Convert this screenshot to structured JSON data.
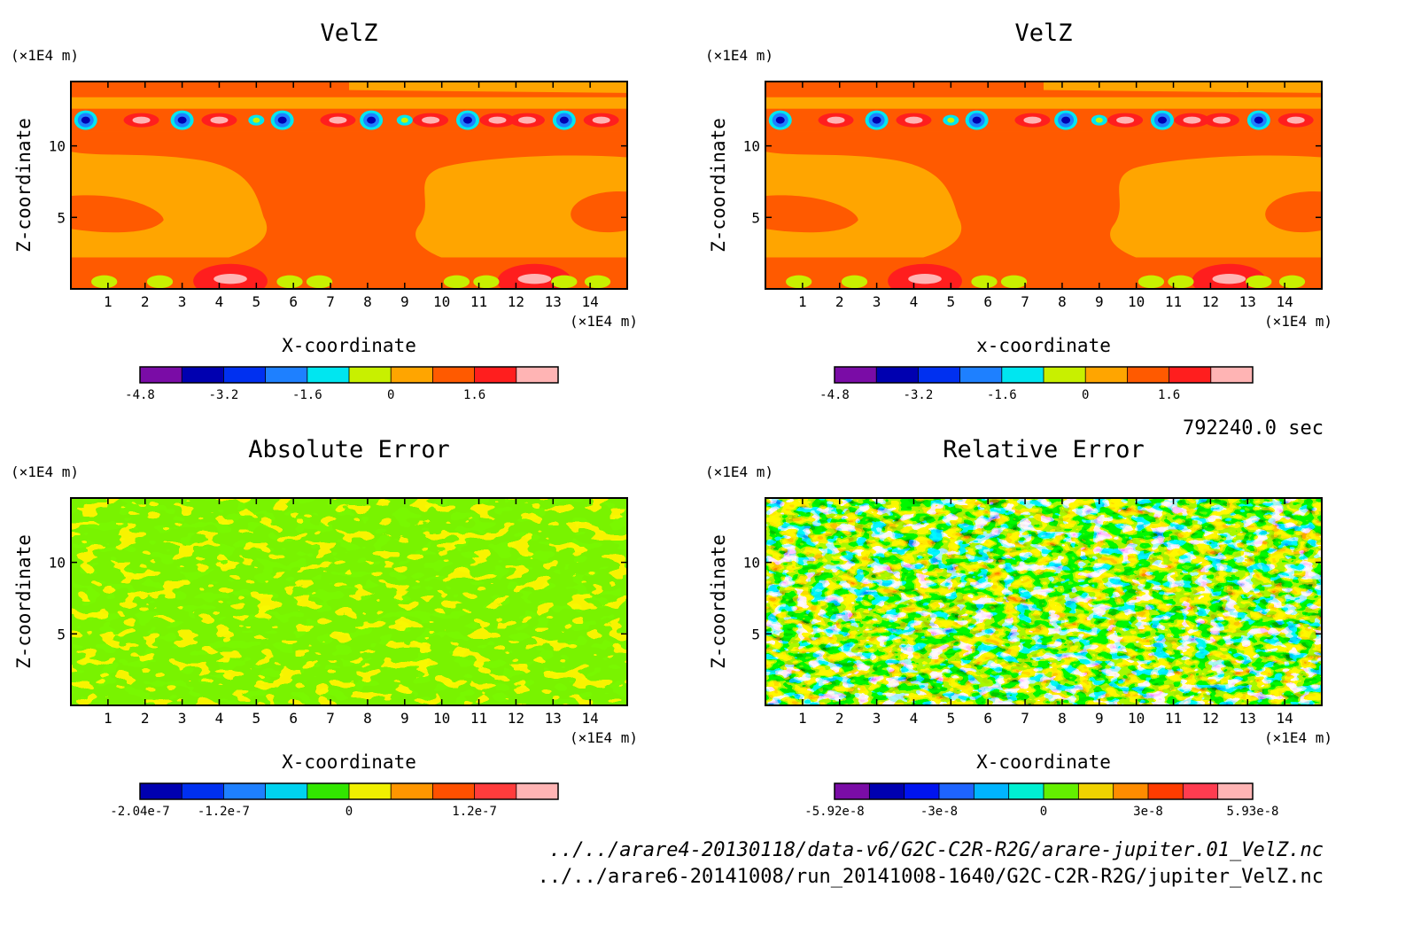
{
  "time_label": "792240.0 sec",
  "files": [
    "../../arare4-20130118/data-v6/G2C-C2R-R2G/arare-jupiter.01_VelZ.nc",
    "../../arare6-20141008/run_20141008-1640/G2C-C2R-R2G/jupiter_VelZ.nc"
  ],
  "chart_data": [
    {
      "type": "heatmap",
      "title": "VelZ",
      "xlabel": "X-coordinate",
      "ylabel": "Z-coordinate",
      "x_unit": "(×1E4 m)",
      "y_unit": "(×1E4 m)",
      "xlim": [
        0,
        15
      ],
      "ylim": [
        0,
        14.5
      ],
      "x_ticks": [
        "1",
        "2",
        "3",
        "4",
        "5",
        "6",
        "7",
        "8",
        "9",
        "10",
        "11",
        "12",
        "13",
        "14"
      ],
      "y_ticks": [
        "5",
        "10"
      ],
      "colorbar": {
        "levels": 10,
        "colors": [
          "#7a0ca6",
          "#0000b0",
          "#0030f0",
          "#1e80ff",
          "#00e6f0",
          "#c8f000",
          "#ffa500",
          "#ff5a00",
          "#ff1e1e",
          "#ffb4b4"
        ],
        "tick_labels": [
          "-4.8",
          "-3.2",
          "-1.6",
          "0",
          "1.6"
        ]
      }
    },
    {
      "type": "heatmap",
      "title": "VelZ",
      "xlabel": "x-coordinate",
      "ylabel": "Z-coordinate",
      "x_unit": "(×1E4 m)",
      "y_unit": "(×1E4 m)",
      "xlim": [
        0,
        15
      ],
      "ylim": [
        0,
        14.5
      ],
      "x_ticks": [
        "1",
        "2",
        "3",
        "4",
        "5",
        "6",
        "7",
        "8",
        "9",
        "10",
        "11",
        "12",
        "13",
        "14"
      ],
      "y_ticks": [
        "5",
        "10"
      ],
      "colorbar": {
        "levels": 10,
        "colors": [
          "#7a0ca6",
          "#0000b0",
          "#0030f0",
          "#1e80ff",
          "#00e6f0",
          "#c8f000",
          "#ffa500",
          "#ff5a00",
          "#ff1e1e",
          "#ffb4b4"
        ],
        "tick_labels": [
          "-4.8",
          "-3.2",
          "-1.6",
          "0",
          "1.6"
        ]
      }
    },
    {
      "type": "heatmap",
      "title": "Absolute Error",
      "xlabel": "X-coordinate",
      "ylabel": "Z-coordinate",
      "x_unit": "(×1E4 m)",
      "y_unit": "(×1E4 m)",
      "xlim": [
        0,
        15
      ],
      "ylim": [
        0,
        14.5
      ],
      "x_ticks": [
        "1",
        "2",
        "3",
        "4",
        "5",
        "6",
        "7",
        "8",
        "9",
        "10",
        "11",
        "12",
        "13",
        "14"
      ],
      "y_ticks": [
        "5",
        "10"
      ],
      "colorbar": {
        "levels": 10,
        "colors": [
          "#0000b0",
          "#0030f0",
          "#1e80ff",
          "#00d2f0",
          "#32e600",
          "#f0f000",
          "#ff9600",
          "#ff5000",
          "#ff3c3c",
          "#ffb4b4"
        ],
        "tick_labels": [
          "-2.04e-7",
          "-1.2e-7",
          "0",
          "1.2e-7"
        ]
      }
    },
    {
      "type": "heatmap",
      "title": "Relative Error",
      "xlabel": "X-coordinate",
      "ylabel": "Z-coordinate",
      "x_unit": "(×1E4 m)",
      "y_unit": "(×1E4 m)",
      "xlim": [
        0,
        15
      ],
      "ylim": [
        0,
        14.5
      ],
      "x_ticks": [
        "1",
        "2",
        "3",
        "4",
        "5",
        "6",
        "7",
        "8",
        "9",
        "10",
        "11",
        "12",
        "13",
        "14"
      ],
      "y_ticks": [
        "5",
        "10"
      ],
      "colorbar": {
        "levels": 12,
        "colors": [
          "#7a0ca6",
          "#0000b0",
          "#0014f0",
          "#1e64ff",
          "#00b4ff",
          "#00f0d2",
          "#64f000",
          "#f0d200",
          "#ff8c00",
          "#ff3c00",
          "#ff3c50",
          "#ffb4b4"
        ],
        "tick_labels": [
          "-5.92e-8",
          "-3e-8",
          "0",
          "3e-8",
          "5.93e-8"
        ]
      }
    }
  ]
}
